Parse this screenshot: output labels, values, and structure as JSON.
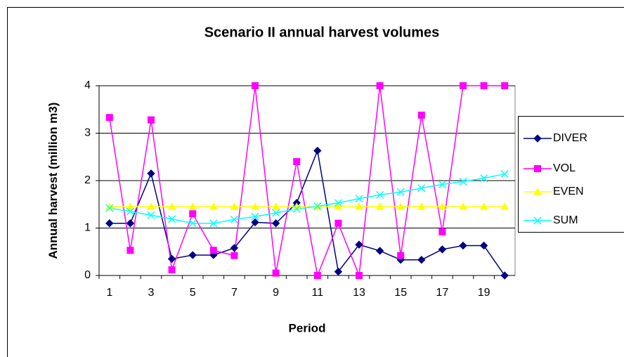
{
  "chart_data": {
    "type": "line",
    "title": "Scenario II annual harvest volumes",
    "x_label": "Period",
    "y_label": "Annual harvest (million m3)",
    "categories": [
      "1",
      null,
      "3",
      null,
      "5",
      null,
      "7",
      null,
      "9",
      null,
      "11",
      null,
      "13",
      null,
      "15",
      null,
      "17",
      null,
      "19",
      null
    ],
    "ylim": [
      0,
      4
    ],
    "yticks": [
      0,
      1,
      2,
      3,
      4
    ],
    "grid": true,
    "series": [
      {
        "name": "DIVER",
        "color": "#000080",
        "marker": "diamond",
        "values": [
          1.1,
          1.1,
          2.15,
          0.35,
          0.43,
          0.43,
          0.58,
          1.12,
          1.1,
          1.53,
          2.63,
          0.08,
          0.65,
          0.52,
          0.33,
          0.33,
          0.55,
          0.63,
          0.63,
          0.0
        ]
      },
      {
        "name": "VOL",
        "color": "#ff00ff",
        "marker": "square",
        "values": [
          3.33,
          0.53,
          3.28,
          0.12,
          1.3,
          0.53,
          0.42,
          4.0,
          0.05,
          2.4,
          0.0,
          1.1,
          0.0,
          4.0,
          0.42,
          3.38,
          0.92,
          4.0,
          4.0,
          4.0
        ]
      },
      {
        "name": "EVEN",
        "color": "#ffff00",
        "marker": "triangle",
        "values": [
          1.45,
          1.45,
          1.45,
          1.45,
          1.45,
          1.45,
          1.45,
          1.45,
          1.45,
          1.45,
          1.45,
          1.45,
          1.45,
          1.45,
          1.45,
          1.45,
          1.45,
          1.45,
          1.45,
          1.45
        ]
      },
      {
        "name": "SUM",
        "color": "#00ffff",
        "marker": "x",
        "values": [
          1.42,
          1.35,
          1.27,
          1.19,
          1.1,
          1.1,
          1.18,
          1.24,
          1.32,
          1.4,
          1.46,
          1.53,
          1.62,
          1.7,
          1.76,
          1.84,
          1.92,
          1.98,
          2.05,
          2.14
        ]
      }
    ]
  }
}
